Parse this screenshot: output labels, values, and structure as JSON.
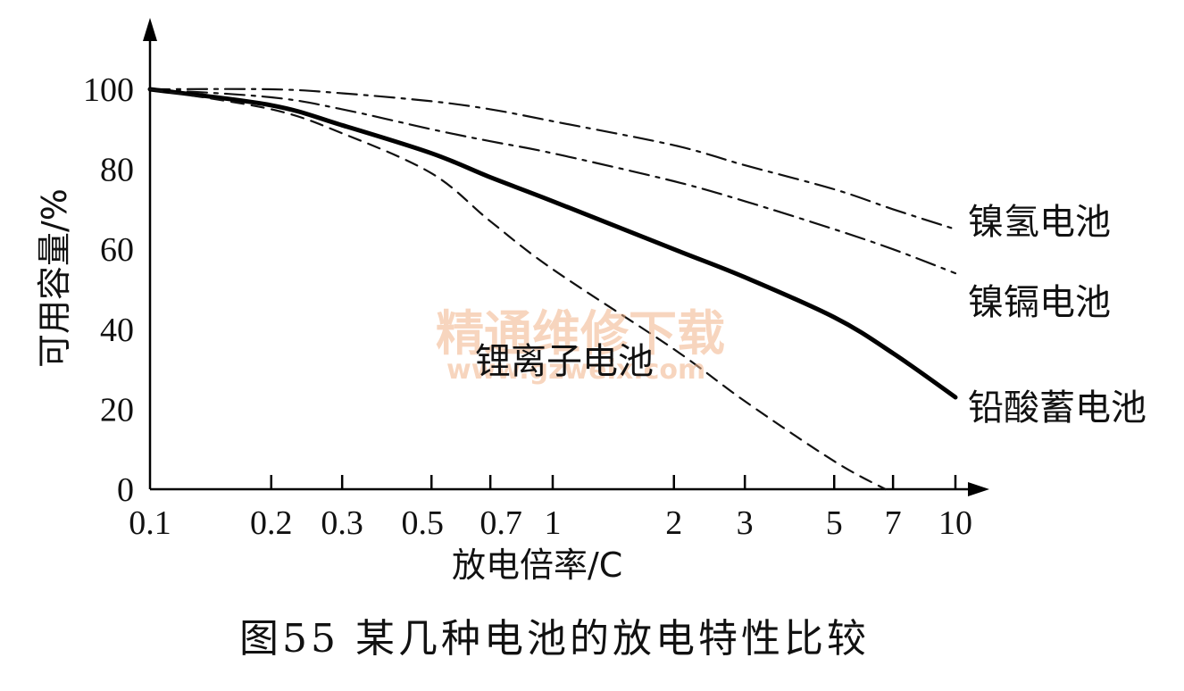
{
  "chart_data": {
    "type": "line",
    "title": "",
    "xlabel": "放电倍率/C",
    "ylabel": "可用容量/%",
    "x_scale": "log",
    "xlim": [
      0.1,
      10
    ],
    "ylim": [
      0,
      100
    ],
    "x_ticks": [
      0.1,
      0.2,
      0.3,
      0.5,
      0.7,
      1,
      2,
      3,
      5,
      7,
      10
    ],
    "x_tick_labels": [
      "0.1",
      "0.2",
      "0.3",
      "0.5",
      "0.7",
      "1",
      "2",
      "3",
      "5",
      "7",
      "10"
    ],
    "y_ticks": [
      0,
      20,
      40,
      60,
      80,
      100
    ],
    "y_tick_labels": [
      "0",
      "20",
      "40",
      "60",
      "80",
      "100"
    ],
    "grid": false,
    "legend": "none",
    "series": [
      {
        "name": "镍氢电池",
        "style": "dash-dot",
        "stroke": "#111111",
        "x": [
          0.1,
          0.2,
          0.3,
          0.5,
          0.7,
          1,
          2,
          3,
          5,
          7,
          10
        ],
        "y": [
          100,
          100,
          99,
          97,
          95,
          92,
          86,
          81,
          75,
          70,
          65
        ]
      },
      {
        "name": "镍镉电池",
        "style": "dash-dot",
        "stroke": "#111111",
        "x": [
          0.1,
          0.2,
          0.3,
          0.5,
          0.7,
          1,
          2,
          3,
          5,
          7,
          10
        ],
        "y": [
          100,
          98,
          95,
          90,
          87,
          84,
          77,
          72,
          65,
          60,
          54
        ]
      },
      {
        "name": "铅酸蓄电池",
        "style": "solid-thick",
        "stroke": "#000000",
        "x": [
          0.1,
          0.2,
          0.3,
          0.5,
          0.7,
          1,
          2,
          3,
          5,
          7,
          10
        ],
        "y": [
          100,
          96,
          91,
          84,
          78,
          72,
          60,
          53,
          43,
          34,
          23
        ]
      },
      {
        "name": "锂离子电池",
        "style": "dashed",
        "stroke": "#111111",
        "x": [
          0.1,
          0.2,
          0.3,
          0.5,
          0.7,
          1,
          2,
          3,
          5,
          6.7
        ],
        "y": [
          100,
          95,
          89,
          79,
          67,
          55,
          35,
          22,
          7,
          0
        ]
      }
    ],
    "series_labels": [
      "镍氢电池",
      "镍镉电池",
      "铅酸蓄电池",
      "锂离子电池"
    ]
  },
  "caption": "图55   某几种电池的放电特性比较",
  "watermark": {
    "main": "精通维修下载",
    "sub": "www.gzweix.com",
    "color": "#f2b48a"
  }
}
